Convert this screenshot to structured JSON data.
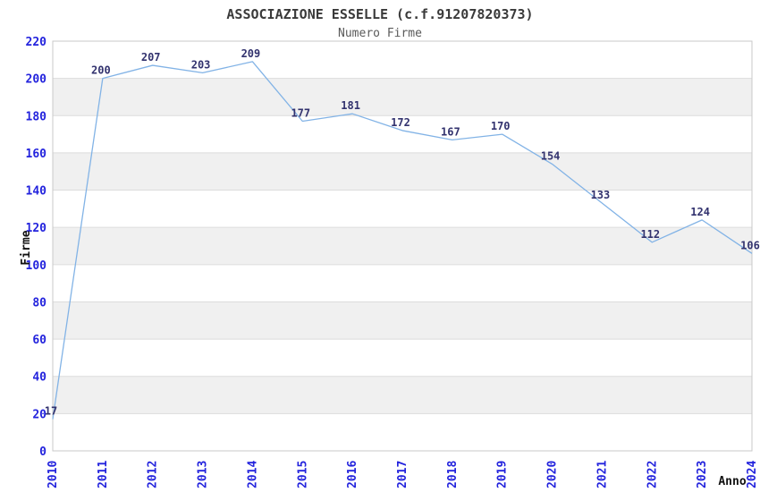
{
  "chart_data": {
    "type": "line",
    "title": "ASSOCIAZIONE ESSELLE (c.f.91207820373)",
    "subtitle": "Numero Firme",
    "xlabel": "Anno",
    "ylabel": "Firme",
    "categories": [
      "2010",
      "2011",
      "2012",
      "2013",
      "2014",
      "2015",
      "2016",
      "2017",
      "2018",
      "2019",
      "2020",
      "2021",
      "2022",
      "2023",
      "2024"
    ],
    "values": [
      17,
      200,
      207,
      203,
      209,
      177,
      181,
      172,
      167,
      170,
      154,
      133,
      112,
      124,
      106
    ],
    "ylim": [
      0,
      220
    ],
    "ytick_step": 20,
    "yticks": [
      0,
      20,
      40,
      60,
      80,
      100,
      120,
      140,
      160,
      180,
      200,
      220
    ],
    "grid": true,
    "banded_background": true,
    "legend_position": "none",
    "colors": {
      "line": "#82b3e6",
      "tick_label": "#2323dd",
      "value_label": "#32326e",
      "band": "#f0f0f0",
      "grid": "#dcdcdc",
      "border": "#c9c9c9",
      "title": "#3a3a3a",
      "subtitle": "#5a5a5a",
      "axis_title": "#111111",
      "background": "#ffffff"
    }
  }
}
